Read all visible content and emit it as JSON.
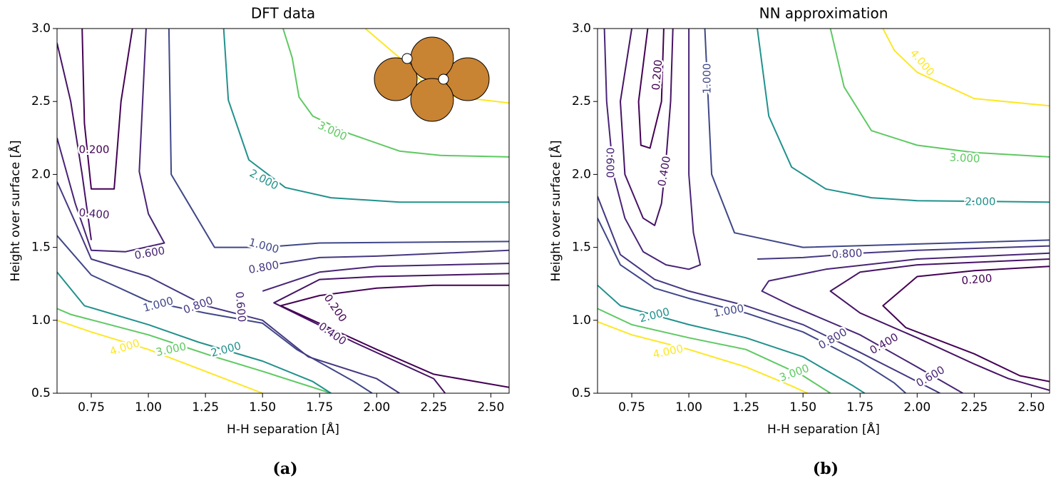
{
  "chart_data": [
    {
      "type": "contour",
      "title": "DFT data",
      "caption": "(a)",
      "xlabel": "H-H separation [Å]",
      "ylabel": "Height over surface [Å]",
      "xlim": [
        0.6,
        2.58
      ],
      "ylim": [
        0.5,
        3.0
      ],
      "xticks": [
        0.75,
        {
          "value": 1,
          "label": "1.00"
        },
        1.25,
        {
          "value": 1.5,
          "label": "1.50"
        },
        1.75,
        {
          "value": 2,
          "label": "2.00"
        },
        2.25,
        {
          "value": 2.5,
          "label": "2.50"
        }
      ],
      "yticks": [
        0.5,
        {
          "value": 1,
          "label": "1.0"
        },
        1.5,
        {
          "value": 2,
          "label": "2.0"
        },
        2.5,
        {
          "value": 3,
          "label": "3.0"
        }
      ],
      "contours": [
        {
          "level": {
            "value": 4,
            "label": "4.000"
          },
          "color": "#fde725",
          "x": [
            0.6,
            0.75,
            1.0,
            1.25,
            1.5
          ],
          "y": [
            1.0,
            0.92,
            0.8,
            0.65,
            0.5
          ]
        },
        {
          "level": {
            "value": 4,
            "label": "4.000"
          },
          "color": "#fde725",
          "x": [
            1.95,
            2.1,
            2.25,
            2.58
          ],
          "y": [
            3.0,
            2.8,
            2.55,
            2.49
          ]
        },
        {
          "level": {
            "value": 3,
            "label": "3.000"
          },
          "color": "#5ec962",
          "x": [
            0.6,
            0.66,
            1.0,
            1.29,
            1.5,
            1.8
          ],
          "y": [
            1.08,
            1.04,
            0.9,
            0.75,
            0.65,
            0.5
          ]
        },
        {
          "level": {
            "value": 3,
            "label": "3.000"
          },
          "color": "#5ec962",
          "x": [
            1.59,
            1.63,
            1.66,
            1.72,
            1.88,
            2.1,
            2.28,
            2.58
          ],
          "y": [
            3.0,
            2.8,
            2.53,
            2.4,
            2.28,
            2.16,
            2.13,
            2.12
          ]
        },
        {
          "level": {
            "value": 2,
            "label": "2.000"
          },
          "color": "#21918c",
          "x": [
            0.6,
            0.72,
            1.0,
            1.22,
            1.5,
            1.72,
            1.8
          ],
          "y": [
            1.33,
            1.1,
            0.97,
            0.85,
            0.72,
            0.58,
            0.5
          ]
        },
        {
          "level": {
            "value": 2,
            "label": "2.000"
          },
          "color": "#21918c",
          "x": [
            1.33,
            1.35,
            1.44,
            1.6,
            1.8,
            2.1,
            2.58
          ],
          "y": [
            3.0,
            2.51,
            2.1,
            1.91,
            1.84,
            1.81,
            1.81
          ]
        },
        {
          "level": {
            "value": 1,
            "label": "1.000"
          },
          "color": "#3f4788",
          "x": [
            0.6,
            0.75,
            1.0,
            1.25,
            1.5,
            1.65,
            1.9,
            1.98
          ],
          "y": [
            1.58,
            1.31,
            1.13,
            1.05,
            0.98,
            0.8,
            0.58,
            0.5
          ]
        },
        {
          "level": {
            "value": 0.8,
            "label": "0.800"
          },
          "color": "#453781",
          "x": [
            0.6,
            0.7,
            0.75,
            1.0,
            1.25,
            1.5,
            1.7,
            2.0,
            2.1
          ],
          "y": [
            1.95,
            1.6,
            1.42,
            1.3,
            1.1,
            1.0,
            0.75,
            0.6,
            0.5
          ]
        },
        {
          "level": {
            "value": 0.6,
            "label": "0.600"
          },
          "color": "#482475",
          "x": [
            0.6,
            0.68,
            0.75,
            0.9,
            1.07,
            1.0,
            0.96,
            0.99
          ],
          "y": [
            2.25,
            1.8,
            1.48,
            1.47,
            1.53,
            1.73,
            2.02,
            3.0
          ]
        },
        {
          "level": {
            "value": 0.4,
            "label": "0.400"
          },
          "color": "#471365",
          "x": [
            0.6,
            0.66,
            0.71,
            0.75
          ],
          "y": [
            2.9,
            2.5,
            2.0,
            1.55
          ]
        },
        {
          "level": {
            "value": 0.2,
            "label": "0.200"
          },
          "color": "#440154",
          "x": [
            0.71,
            0.72,
            0.75,
            0.85,
            0.88,
            0.93
          ],
          "y": [
            3.0,
            2.35,
            1.9,
            1.9,
            2.5,
            3.0
          ]
        },
        {
          "level": {
            "value": 1,
            "label": "1.000"
          },
          "color": "#3f4788",
          "x": [
            1.09,
            1.1,
            1.29,
            1.5,
            1.75,
            2.58
          ],
          "y": [
            3.0,
            2.0,
            1.5,
            1.5,
            1.53,
            1.54
          ]
        },
        {
          "level": {
            "value": 0.8,
            "label": "0.800"
          },
          "color": "#453781",
          "x": [
            1.5,
            1.75,
            2.0,
            2.58
          ],
          "y": [
            1.37,
            1.43,
            1.44,
            1.48
          ]
        },
        {
          "level": {
            "value": 0.6,
            "label": "0.600"
          },
          "color": "#482475",
          "x": [
            1.5,
            1.75,
            2.0,
            2.58
          ],
          "y": [
            1.2,
            1.33,
            1.37,
            1.39
          ]
        },
        {
          "level": {
            "value": 0.4,
            "label": "0.400"
          },
          "color": "#471365",
          "x": [
            2.58,
            2.0,
            1.75,
            1.55,
            1.9,
            2.25,
            2.3
          ],
          "y": [
            1.32,
            1.3,
            1.28,
            1.12,
            0.85,
            0.6,
            0.5
          ]
        },
        {
          "level": {
            "value": 0.2,
            "label": "0.200"
          },
          "color": "#440154",
          "x": [
            2.58,
            2.25,
            2.0,
            1.75,
            1.58,
            2.0,
            2.25,
            2.58
          ],
          "y": [
            1.24,
            1.24,
            1.22,
            1.17,
            1.1,
            0.8,
            0.63,
            0.54
          ]
        }
      ]
    },
    {
      "type": "contour",
      "title": "NN approximation",
      "caption": "(b)",
      "xlabel": "H-H separation [Å]",
      "ylabel": "Height over surface [Å]",
      "xlim": [
        0.6,
        2.58
      ],
      "ylim": [
        0.5,
        3.0
      ],
      "xticks": [
        0.75,
        {
          "value": 1,
          "label": "1.00"
        },
        1.25,
        {
          "value": 1.5,
          "label": "1.50"
        },
        1.75,
        {
          "value": 2,
          "label": "2.00"
        },
        2.25,
        {
          "value": 2.5,
          "label": "2.50"
        }
      ],
      "yticks": [
        0.5,
        {
          "value": 1,
          "label": "1.0"
        },
        1.5,
        {
          "value": 2,
          "label": "2.0"
        },
        2.5,
        {
          "value": 3,
          "label": "3.0"
        }
      ],
      "contours": [
        {
          "level": {
            "value": 4,
            "label": "4.000"
          },
          "color": "#fde725",
          "x": [
            0.6,
            0.75,
            1.0,
            1.25,
            1.45,
            1.52
          ],
          "y": [
            0.99,
            0.9,
            0.8,
            0.68,
            0.55,
            0.5
          ]
        },
        {
          "level": {
            "value": 4,
            "label": "4.000"
          },
          "color": "#fde725",
          "x": [
            1.85,
            1.9,
            2.0,
            2.25,
            2.58
          ],
          "y": [
            3.0,
            2.85,
            2.7,
            2.52,
            2.47
          ]
        },
        {
          "level": {
            "value": 3,
            "label": "3.000"
          },
          "color": "#5ec962",
          "x": [
            0.6,
            0.75,
            1.0,
            1.25,
            1.5,
            1.62
          ],
          "y": [
            1.08,
            0.97,
            0.88,
            0.8,
            0.62,
            0.5
          ]
        },
        {
          "level": {
            "value": 3,
            "label": "3.000"
          },
          "color": "#5ec962",
          "x": [
            1.62,
            1.68,
            1.8,
            2.0,
            2.25,
            2.58
          ],
          "y": [
            3.0,
            2.6,
            2.3,
            2.2,
            2.15,
            2.12
          ]
        },
        {
          "level": {
            "value": 2,
            "label": "2.000"
          },
          "color": "#21918c",
          "x": [
            0.6,
            0.7,
            1.0,
            1.25,
            1.5,
            1.72,
            1.77
          ],
          "y": [
            1.24,
            1.1,
            0.97,
            0.88,
            0.75,
            0.55,
            0.5
          ]
        },
        {
          "level": {
            "value": 2,
            "label": "2.000"
          },
          "color": "#21918c",
          "x": [
            1.3,
            1.35,
            1.45,
            1.6,
            1.8,
            2.0,
            2.58
          ],
          "y": [
            3.0,
            2.4,
            2.05,
            1.9,
            1.84,
            1.82,
            1.81
          ]
        },
        {
          "level": {
            "value": 1,
            "label": "1.000"
          },
          "color": "#3f4788",
          "x": [
            0.6,
            0.7,
            0.85,
            1.0,
            1.25,
            1.5,
            1.75,
            1.9,
            1.95
          ],
          "y": [
            1.7,
            1.38,
            1.22,
            1.15,
            1.05,
            0.92,
            0.72,
            0.57,
            0.5
          ]
        },
        {
          "level": {
            "value": 0.8,
            "label": "0.800"
          },
          "color": "#453781",
          "x": [
            0.6,
            0.7,
            0.85,
            1.0,
            1.25,
            1.5,
            1.75,
            2.0,
            2.1
          ],
          "y": [
            1.85,
            1.45,
            1.28,
            1.2,
            1.1,
            0.97,
            0.78,
            0.58,
            0.5
          ]
        },
        {
          "level": {
            "value": 0.6,
            "label": "0.600"
          },
          "color": "#482475",
          "x": [
            0.63,
            0.64,
            0.67,
            0.72,
            0.8,
            0.9,
            1.0,
            1.05,
            1.02,
            1.0,
            1.0
          ],
          "y": [
            3.0,
            2.5,
            2.0,
            1.7,
            1.47,
            1.38,
            1.35,
            1.38,
            1.6,
            2.0,
            3.0
          ]
        },
        {
          "level": {
            "value": 1,
            "label": "1.000"
          },
          "color": "#3f4788",
          "x": [
            1.07,
            1.1,
            1.2,
            1.5,
            2.58
          ],
          "y": [
            3.0,
            2.0,
            1.6,
            1.5,
            1.55
          ]
        },
        {
          "level": {
            "value": 0.6,
            "label": "0.600"
          },
          "color": "#482475",
          "x": [
            2.58,
            2.0,
            1.6,
            1.35,
            1.32,
            1.45,
            1.75,
            2.0,
            2.2
          ],
          "y": [
            1.46,
            1.42,
            1.35,
            1.27,
            1.2,
            1.1,
            0.9,
            0.68,
            0.5
          ]
        },
        {
          "level": {
            "value": 0.8,
            "label": "0.800"
          },
          "color": "#453781",
          "x": [
            1.3,
            1.5,
            1.75,
            2.0,
            2.58
          ],
          "y": [
            1.42,
            1.43,
            1.46,
            1.48,
            1.51
          ]
        },
        {
          "level": {
            "value": 0.4,
            "label": "0.400"
          },
          "color": "#471365",
          "x": [
            2.58,
            2.0,
            1.75,
            1.62,
            1.75,
            2.0,
            2.25,
            2.4,
            2.58
          ],
          "y": [
            1.42,
            1.38,
            1.33,
            1.2,
            1.05,
            0.88,
            0.7,
            0.6,
            0.52
          ]
        },
        {
          "level": {
            "value": 0.2,
            "label": "0.200"
          },
          "color": "#440154",
          "x": [
            2.58,
            2.25,
            2.0,
            1.85,
            1.95,
            2.25,
            2.45,
            2.58
          ],
          "y": [
            1.37,
            1.34,
            1.3,
            1.1,
            0.95,
            0.77,
            0.62,
            0.58
          ]
        },
        {
          "level": {
            "value": 0.4,
            "label": "0.400"
          },
          "color": "#471365",
          "x": [
            0.75,
            0.7,
            0.72,
            0.8,
            0.85,
            0.88,
            0.9,
            0.92,
            0.93
          ],
          "y": [
            3.0,
            2.5,
            2.0,
            1.7,
            1.65,
            1.8,
            2.1,
            2.5,
            3.0
          ]
        },
        {
          "level": {
            "value": 0.2,
            "label": "0.200"
          },
          "color": "#440154",
          "x": [
            0.82,
            0.78,
            0.79,
            0.83,
            0.88,
            0.89
          ],
          "y": [
            3.0,
            2.5,
            2.2,
            2.18,
            2.5,
            3.0
          ]
        }
      ]
    }
  ]
}
